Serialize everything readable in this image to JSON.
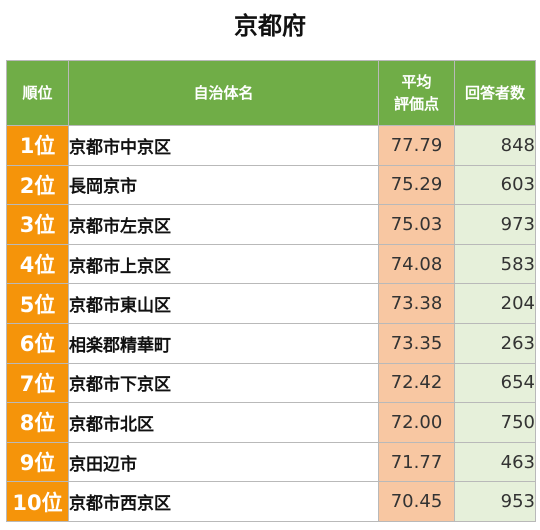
{
  "title": "京都府",
  "table": {
    "headers": {
      "rank": "順位",
      "name": "自治体名",
      "score_line1": "平均",
      "score_line2": "評価点",
      "respondents": "回答者数"
    },
    "rows": [
      {
        "rank": "1位",
        "name": "京都市中京区",
        "score": "77.79",
        "respondents": "848"
      },
      {
        "rank": "2位",
        "name": "長岡京市",
        "score": "75.29",
        "respondents": "603"
      },
      {
        "rank": "3位",
        "name": "京都市左京区",
        "score": "75.03",
        "respondents": "973"
      },
      {
        "rank": "4位",
        "name": "京都市上京区",
        "score": "74.08",
        "respondents": "583"
      },
      {
        "rank": "5位",
        "name": "京都市東山区",
        "score": "73.38",
        "respondents": "204"
      },
      {
        "rank": "6位",
        "name": "相楽郡精華町",
        "score": "73.35",
        "respondents": "263"
      },
      {
        "rank": "7位",
        "name": "京都市下京区",
        "score": "72.42",
        "respondents": "654"
      },
      {
        "rank": "8位",
        "name": "京都市北区",
        "score": "72.00",
        "respondents": "750"
      },
      {
        "rank": "9位",
        "name": "京田辺市",
        "score": "71.77",
        "respondents": "463"
      },
      {
        "rank": "10位",
        "name": "京都市西京区",
        "score": "70.45",
        "respondents": "953"
      }
    ]
  },
  "colors": {
    "header_bg": "#70ad47",
    "rank_bg": "#f5940a",
    "score_bg": "#f8c7a2",
    "respondents_bg": "#e6f0da"
  }
}
